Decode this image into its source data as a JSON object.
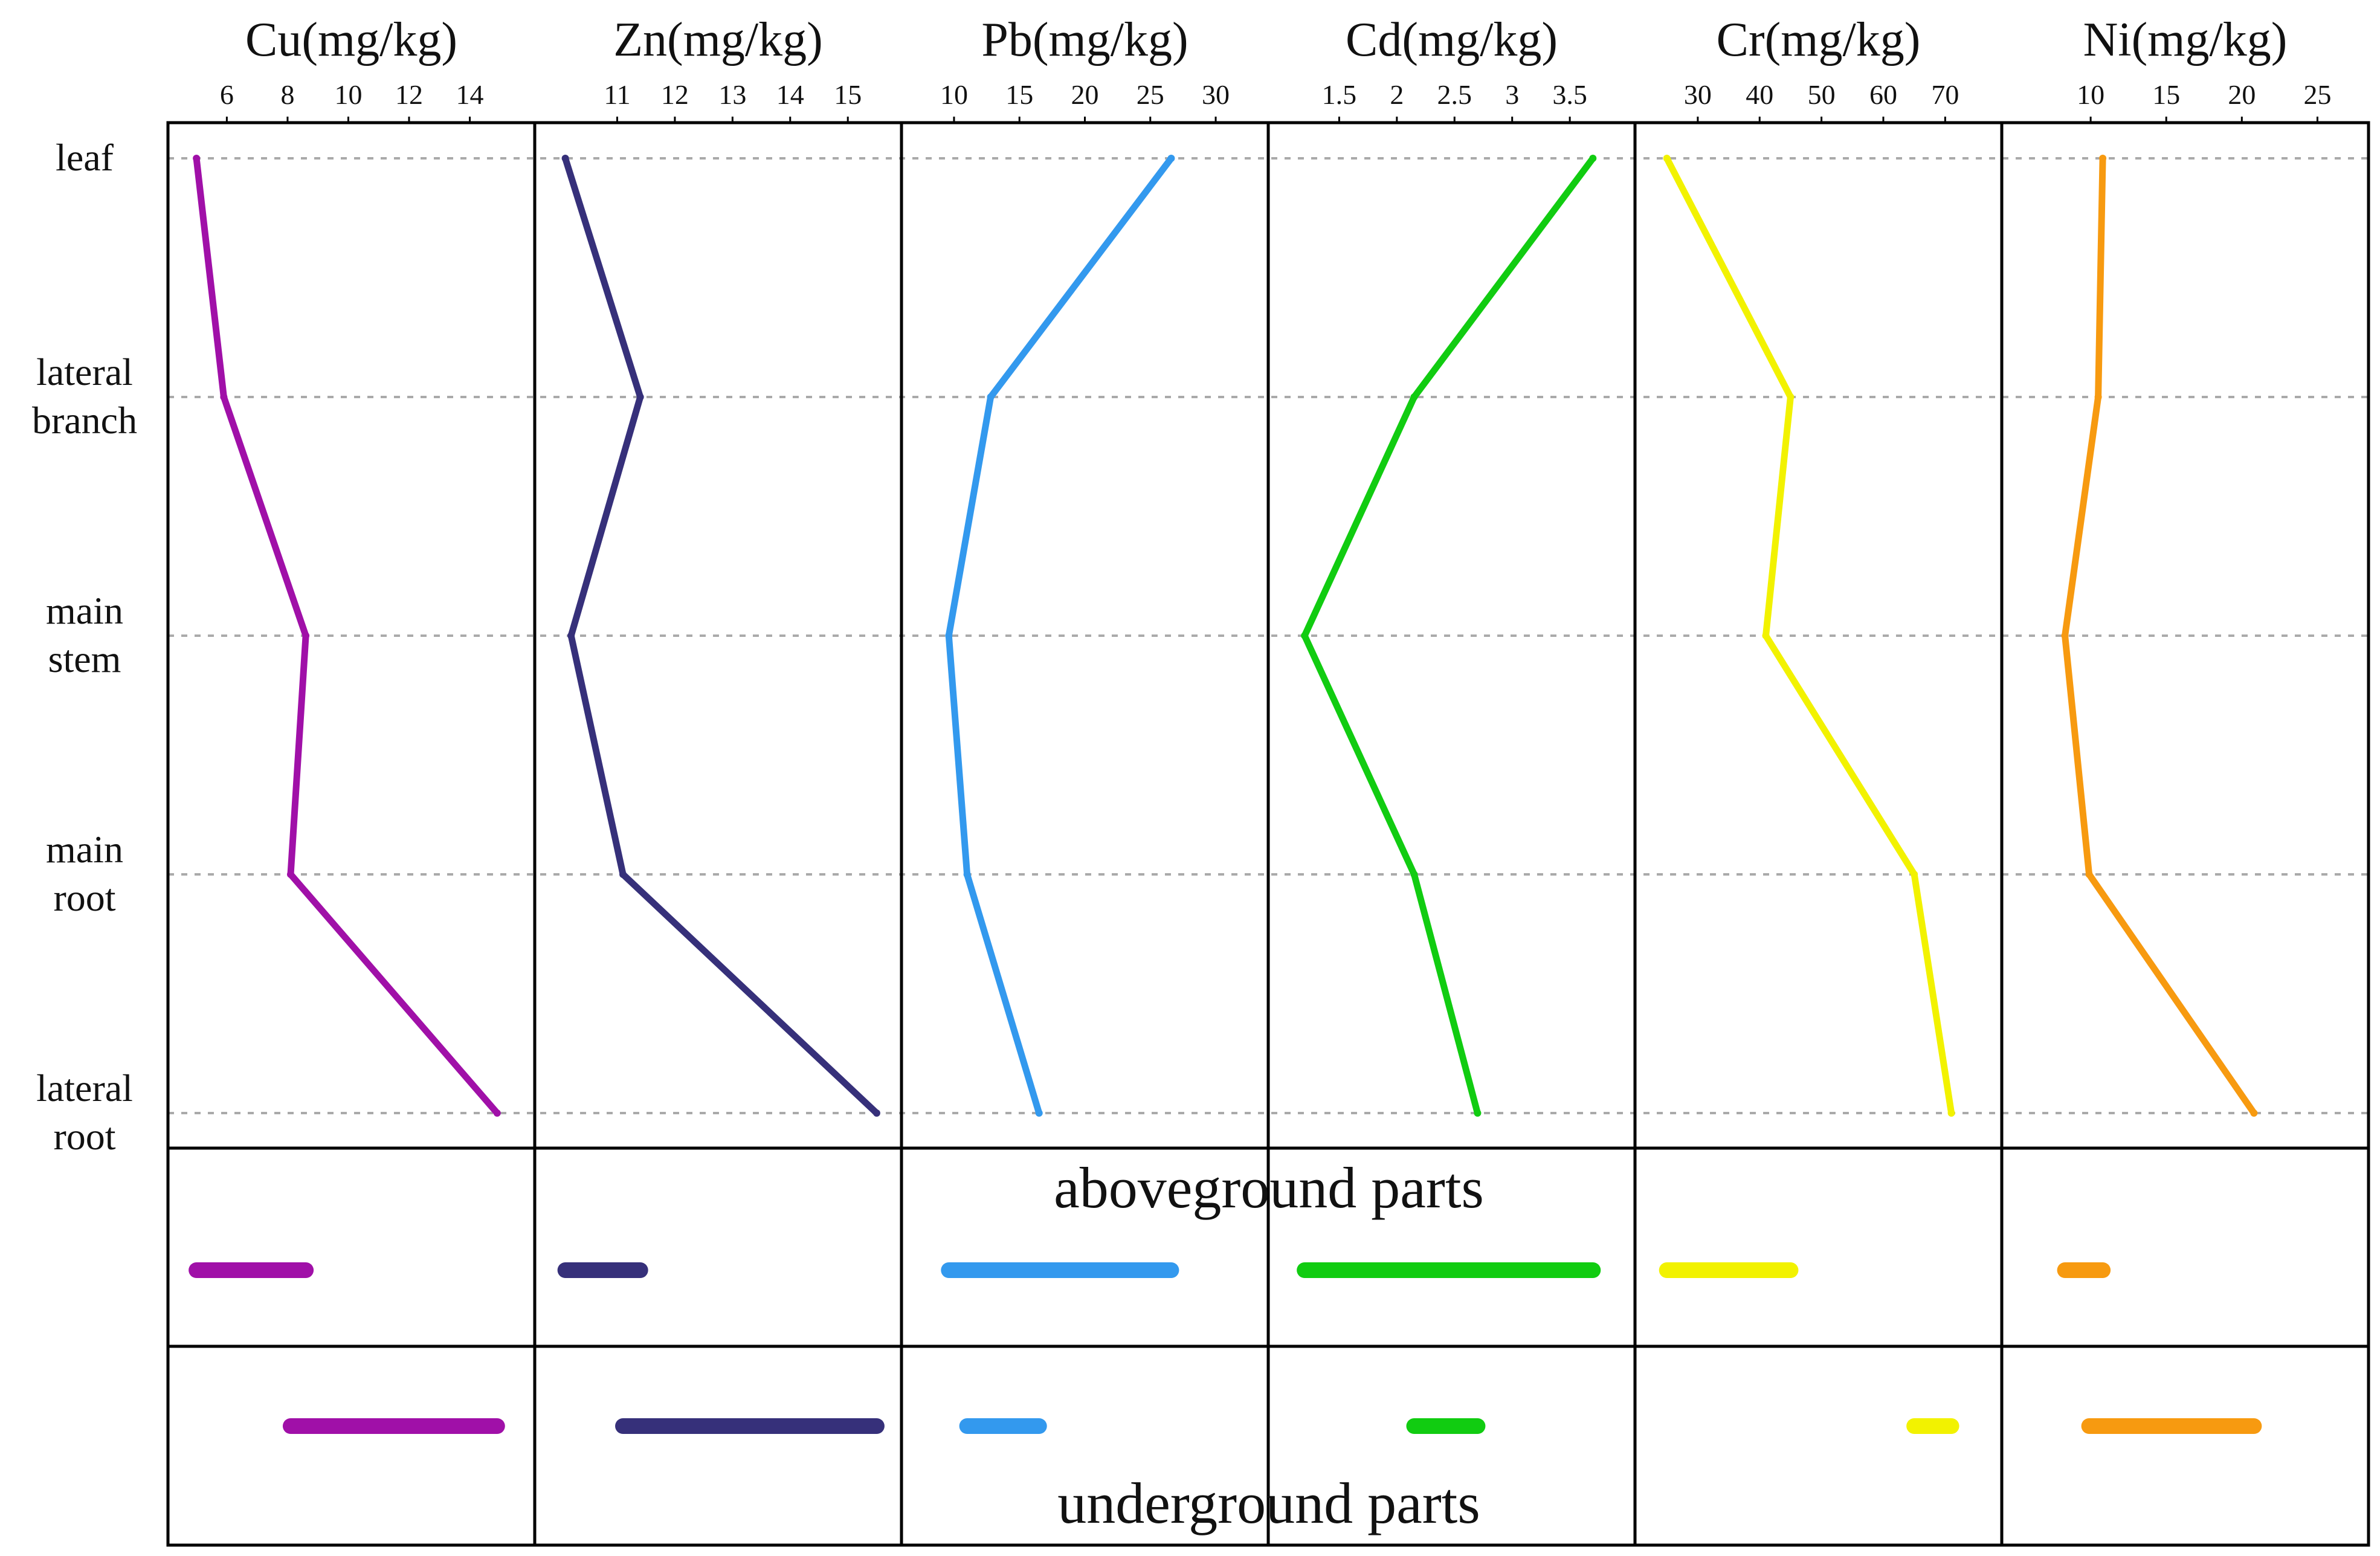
{
  "chart_data": {
    "type": "line",
    "orientation": "profile",
    "categories": [
      "leaf",
      "lateral branch",
      "main stem",
      "main root",
      "lateral root"
    ],
    "category_label_lines": [
      [
        "leaf"
      ],
      [
        "lateral",
        "branch"
      ],
      [
        "main",
        "stem"
      ],
      [
        "main",
        "root"
      ],
      [
        "lateral",
        "root"
      ]
    ],
    "grid": "dashed horizontal lines at each plant part",
    "panels": [
      {
        "title": "Cu(mg/kg)",
        "color": "#A010A8",
        "xlim": [
          4.5,
          15.7
        ],
        "ticks": [
          6,
          8,
          10,
          12,
          14
        ],
        "tick_labels": [
          "6",
          "8",
          "10",
          "12",
          "14"
        ],
        "series": [
          {
            "values": [
              5.0,
              5.9,
              8.6,
              8.1,
              14.9
            ]
          }
        ]
      },
      {
        "title": "Zn(mg/kg)",
        "color": "#36307A",
        "xlim": [
          9.8,
          15.7
        ],
        "ticks": [
          11,
          12,
          13,
          14,
          15
        ],
        "tick_labels": [
          "11",
          "12",
          "13",
          "14",
          "15"
        ],
        "series": [
          {
            "values": [
              10.1,
              11.4,
              10.2,
              11.1,
              15.5
            ]
          }
        ]
      },
      {
        "title": "Pb(mg/kg)",
        "color": "#3399EE",
        "xlim": [
          7,
          33
        ],
        "ticks": [
          10,
          15,
          20,
          25,
          30
        ],
        "tick_labels": [
          "10",
          "15",
          "20",
          "25",
          "30"
        ],
        "series": [
          {
            "values": [
              26.6,
              12.8,
              9.6,
              11.0,
              16.5
            ]
          }
        ]
      },
      {
        "title": "Cd(mg/kg)",
        "color": "#11CC11",
        "xlim": [
          1.0,
          3.95
        ],
        "ticks": [
          1.5,
          2,
          2.5,
          3,
          3.5
        ],
        "tick_labels": [
          "1.5",
          "2",
          "2.5",
          "3",
          "3.5"
        ],
        "series": [
          {
            "values": [
              3.7,
              2.15,
              1.2,
              2.15,
              2.7
            ]
          }
        ]
      },
      {
        "title": "Cr(mg/kg)",
        "color": "#F2F200",
        "xlim": [
          22,
          77
        ],
        "ticks": [
          30,
          40,
          50,
          60,
          70
        ],
        "tick_labels": [
          "30",
          "40",
          "50",
          "60",
          "70"
        ],
        "series": [
          {
            "values": [
              25,
              45,
              41,
              65,
              71
            ]
          }
        ]
      },
      {
        "title": "Ni(mg/kg)",
        "color": "#F79A10",
        "xlim": [
          5,
          27.5
        ],
        "ticks": [
          10,
          15,
          20,
          25
        ],
        "tick_labels": [
          "10",
          "15",
          "20",
          "25"
        ],
        "series": [
          {
            "values": [
              10.8,
              10.5,
              8.3,
              9.9,
              20.8
            ]
          }
        ]
      }
    ],
    "range_rows": [
      {
        "label": "aboveground parts",
        "ranges": [
          [
            5.0,
            8.6
          ],
          [
            10.1,
            11.4
          ],
          [
            9.6,
            26.6
          ],
          [
            1.2,
            3.7
          ],
          [
            25,
            45
          ],
          [
            8.3,
            10.8
          ]
        ]
      },
      {
        "label": "underground parts",
        "ranges": [
          [
            8.1,
            14.9
          ],
          [
            11.1,
            15.5
          ],
          [
            11.0,
            16.5
          ],
          [
            2.15,
            2.7
          ],
          [
            65,
            71
          ],
          [
            9.9,
            20.8
          ]
        ]
      }
    ]
  }
}
